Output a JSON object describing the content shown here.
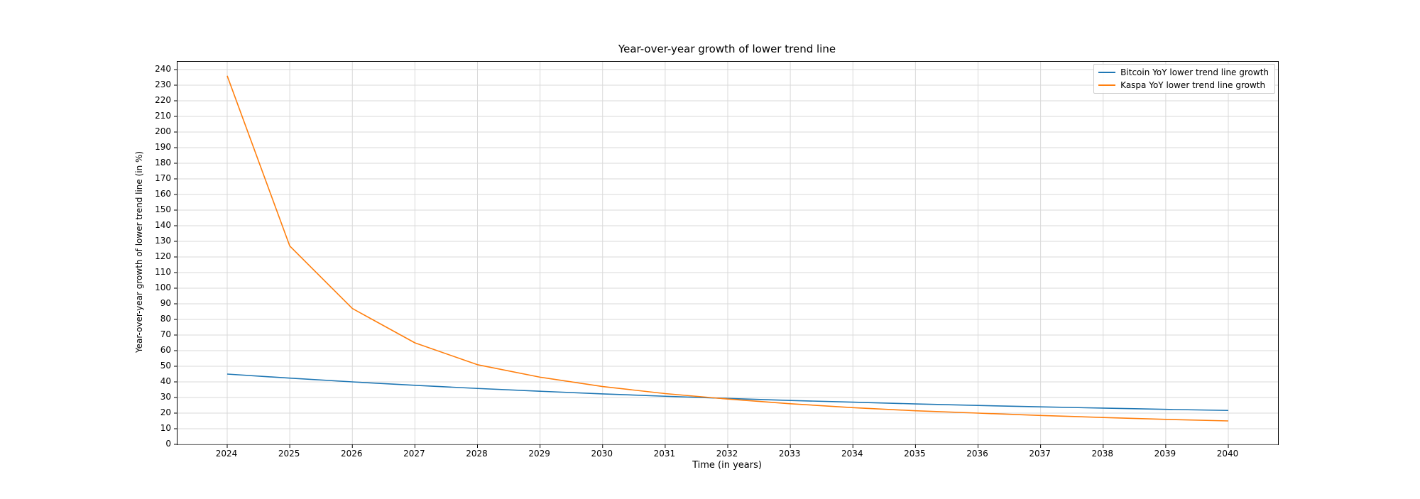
{
  "chart_data": {
    "type": "line",
    "title": "Year-over-year growth of lower trend line",
    "xlabel": "Time (in years)",
    "ylabel": "Year-over-year growth of lower trend line (in %)",
    "x": [
      2024,
      2025,
      2026,
      2027,
      2028,
      2029,
      2030,
      2031,
      2032,
      2033,
      2034,
      2035,
      2036,
      2037,
      2038,
      2039,
      2040
    ],
    "series": [
      {
        "name": "Bitcoin YoY lower trend line growth",
        "color": "#1f77b4",
        "values": [
          45,
          42.4,
          40,
          37.8,
          35.8,
          34,
          32.3,
          30.8,
          29.4,
          28.1,
          27,
          25.9,
          24.9,
          24,
          23.2,
          22.4,
          21.7
        ]
      },
      {
        "name": "Kaspa YoY lower trend line growth",
        "color": "#ff7f0e",
        "values": [
          236,
          127,
          87,
          65,
          51,
          43,
          37,
          32.5,
          29,
          26,
          23.5,
          21.5,
          20,
          18.5,
          17.2,
          16,
          15
        ]
      }
    ],
    "ylim": [
      0,
      245
    ],
    "yticks": [
      0,
      10,
      20,
      30,
      40,
      50,
      60,
      70,
      80,
      90,
      100,
      110,
      120,
      130,
      140,
      150,
      160,
      170,
      180,
      190,
      200,
      210,
      220,
      230,
      240
    ],
    "grid": true,
    "legend_position": "upper right",
    "grid_color": "#d9d9d9",
    "axis_color": "#000000"
  }
}
